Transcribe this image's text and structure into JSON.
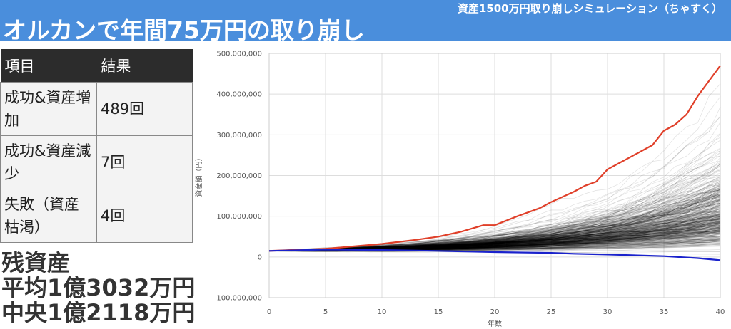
{
  "header": {
    "subtitle": "資産1500万円取り崩しシミュレーション（ちゃすく）",
    "title": "オルカンで年間75万円の取り崩し"
  },
  "table": {
    "headers": [
      "項目",
      "結果"
    ],
    "rows": [
      {
        "label": "成功&資産増加",
        "value": "489回"
      },
      {
        "label": "成功&資産減少",
        "value": "7回"
      },
      {
        "label": "失敗（資産枯渇）",
        "value": "4回"
      }
    ]
  },
  "summary": {
    "line1": "残資産",
    "line2": "平均1億3032万円",
    "line3": "中央1億2118万円"
  },
  "colors": {
    "header_bg": "#4a8edc",
    "best_line": "#e0402a",
    "worst_line": "#1a22cc",
    "sim_lines": "#000000"
  },
  "chart_data": {
    "type": "line",
    "xlabel": "年数",
    "ylabel": "資産額（円）",
    "xlim": [
      0,
      40
    ],
    "ylim": [
      -100000000,
      500000000
    ],
    "x_ticks": [
      0,
      5,
      10,
      15,
      20,
      25,
      30,
      35,
      40
    ],
    "y_ticks": [
      -100000000,
      0,
      100000000,
      200000000,
      300000000,
      400000000,
      500000000
    ],
    "y_tick_labels": [
      "-100,000,000",
      "0",
      "100,000,000",
      "200,000,000",
      "300,000,000",
      "400,000,000",
      "500,000,000"
    ],
    "grid": true,
    "simulation_count": 500,
    "initial_value": 15000000,
    "series": [
      {
        "role": "best",
        "x": [
          0,
          5,
          10,
          13,
          15,
          17,
          19,
          20,
          22,
          24,
          25,
          27,
          28,
          29,
          30,
          32,
          34,
          35,
          36,
          37,
          38,
          40
        ],
        "values": [
          15000000,
          20000000,
          32000000,
          42000000,
          50000000,
          62000000,
          78000000,
          78000000,
          100000000,
          120000000,
          135000000,
          160000000,
          175000000,
          185000000,
          215000000,
          245000000,
          275000000,
          310000000,
          325000000,
          350000000,
          395000000,
          470000000
        ]
      },
      {
        "role": "worst",
        "x": [
          0,
          5,
          10,
          15,
          20,
          25,
          27,
          30,
          35,
          38,
          40
        ],
        "values": [
          15000000,
          18000000,
          17000000,
          15000000,
          12000000,
          10000000,
          8000000,
          6000000,
          2000000,
          -3000000,
          -8000000
        ]
      }
    ]
  }
}
